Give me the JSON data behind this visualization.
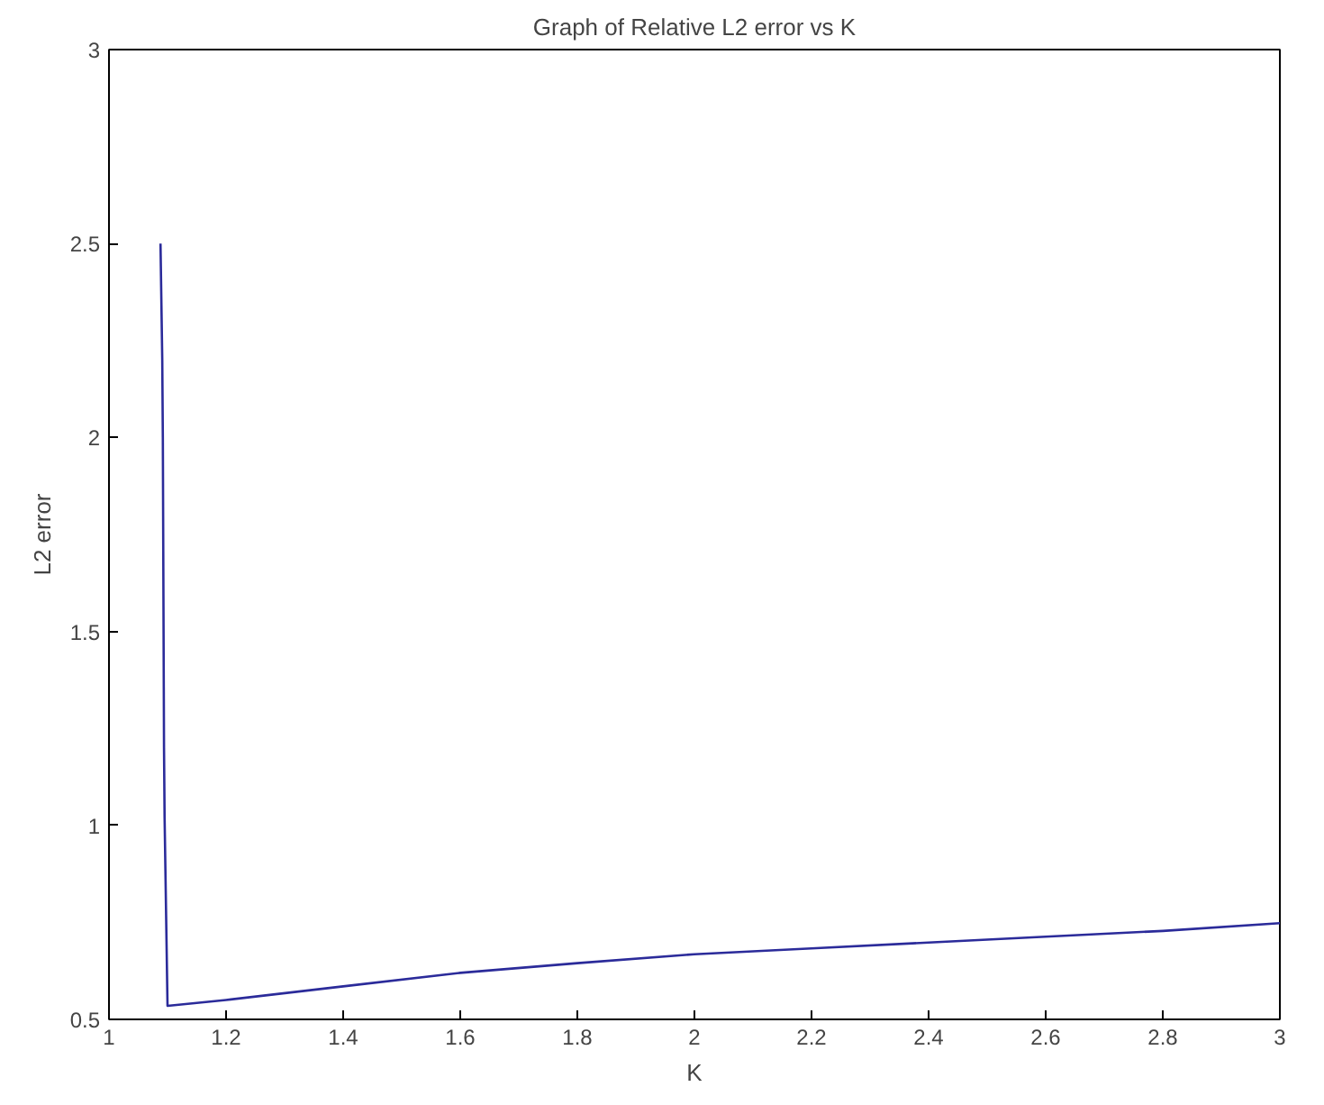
{
  "chart_data": {
    "type": "line",
    "title": "Graph of Relative L2 error vs K",
    "xlabel": "K",
    "ylabel": "L2 error",
    "x": [
      1.088,
      1.091,
      1.092,
      1.094,
      1.095,
      1.1,
      1.2,
      1.4,
      1.6,
      1.8,
      2.0,
      2.2,
      2.4,
      2.6,
      2.8,
      3.0
    ],
    "series": [
      {
        "color": "#2b2b9a",
        "values": [
          2.5,
          2.2,
          2.0,
          1.2,
          1.02,
          0.535,
          0.55,
          0.585,
          0.62,
          0.645,
          0.668,
          0.683,
          0.698,
          0.713,
          0.728,
          0.748
        ]
      }
    ],
    "xlim": [
      1,
      3
    ],
    "ylim": [
      0.5,
      3
    ],
    "xticks": [
      1,
      1.2,
      1.4,
      1.6,
      1.8,
      2,
      2.2,
      2.4,
      2.6,
      2.8,
      3
    ],
    "yticks": [
      0.5,
      1,
      1.5,
      2,
      2.5,
      3
    ],
    "marker": "none",
    "line_style": "solid"
  }
}
